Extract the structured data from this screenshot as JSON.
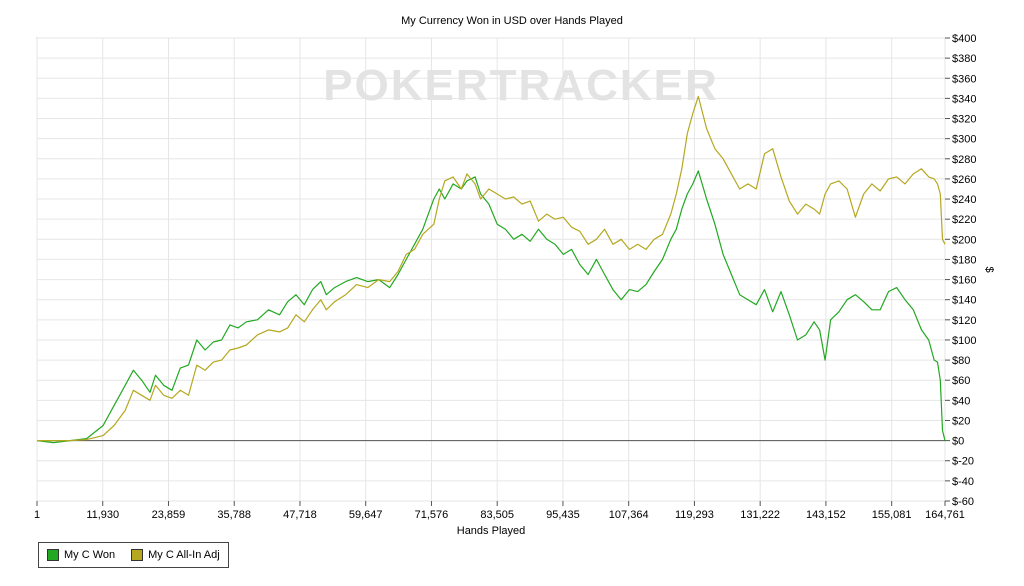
{
  "chart_data": {
    "type": "line",
    "title": "My Currency Won in USD over Hands Played",
    "xlabel": "Hands Played",
    "ylabel": "$",
    "watermark": "POKERTRACKER",
    "xlim": [
      1,
      164761
    ],
    "ylim": [
      -60,
      400
    ],
    "x_ticks": [
      "1",
      "11,930",
      "23,859",
      "35,788",
      "47,718",
      "59,647",
      "71,576",
      "83,505",
      "95,435",
      "107,364",
      "119,293",
      "131,222",
      "143,152",
      "155,081",
      "164,761"
    ],
    "x_tick_values": [
      1,
      11930,
      23859,
      35788,
      47718,
      59647,
      71576,
      83505,
      95435,
      107364,
      119293,
      131222,
      143152,
      155081,
      164761
    ],
    "y_ticks": [
      "$400",
      "$380",
      "$360",
      "$340",
      "$320",
      "$300",
      "$280",
      "$260",
      "$240",
      "$220",
      "$200",
      "$180",
      "$160",
      "$140",
      "$120",
      "$100",
      "$80",
      "$60",
      "$40",
      "$20",
      "$0",
      "$-20",
      "$-40",
      "$-60"
    ],
    "y_tick_values": [
      400,
      380,
      360,
      340,
      320,
      300,
      280,
      260,
      240,
      220,
      200,
      180,
      160,
      140,
      120,
      100,
      80,
      60,
      40,
      20,
      0,
      -20,
      -40,
      -60
    ],
    "grid": true,
    "legend_position": "bottom-left",
    "series": [
      {
        "name": "My C Won",
        "color": "#22a822",
        "x": [
          1,
          3000,
          6000,
          9000,
          12000,
          14000,
          16000,
          17500,
          19000,
          20500,
          21500,
          23000,
          24500,
          26000,
          27500,
          29000,
          30500,
          32000,
          33500,
          35000,
          36500,
          38000,
          40000,
          42000,
          44000,
          45500,
          47000,
          48500,
          50000,
          51500,
          52500,
          54000,
          56000,
          58000,
          60000,
          62000,
          64000,
          65500,
          67000,
          68500,
          70000,
          71000,
          72000,
          73000,
          74000,
          75500,
          77000,
          78000,
          79500,
          80500,
          82000,
          83500,
          85000,
          86500,
          88000,
          89500,
          91000,
          92500,
          94000,
          95500,
          97000,
          98500,
          100000,
          101500,
          103000,
          104500,
          106000,
          107500,
          109000,
          110500,
          112000,
          113500,
          115000,
          116000,
          117000,
          118000,
          119000,
          120000,
          121500,
          123000,
          124500,
          126000,
          127500,
          129000,
          130500,
          132000,
          133500,
          135000,
          136500,
          138000,
          139500,
          141000,
          142000,
          143000,
          144000,
          145500,
          147000,
          148500,
          150000,
          151500,
          153000,
          154500,
          156000,
          157500,
          159000,
          160500,
          161800,
          162800,
          163400,
          163900,
          164300,
          164761
        ],
        "y": [
          0,
          -2,
          0,
          2,
          15,
          35,
          55,
          70,
          60,
          48,
          65,
          55,
          50,
          72,
          75,
          100,
          90,
          98,
          100,
          115,
          112,
          118,
          120,
          130,
          125,
          138,
          145,
          135,
          150,
          158,
          145,
          152,
          158,
          162,
          158,
          160,
          152,
          165,
          180,
          195,
          210,
          225,
          240,
          250,
          240,
          255,
          250,
          258,
          262,
          245,
          235,
          215,
          210,
          200,
          205,
          198,
          210,
          200,
          195,
          185,
          190,
          175,
          165,
          180,
          165,
          150,
          140,
          150,
          148,
          155,
          168,
          180,
          200,
          210,
          230,
          245,
          255,
          268,
          240,
          215,
          185,
          165,
          145,
          140,
          135,
          150,
          128,
          148,
          125,
          100,
          105,
          118,
          110,
          80,
          120,
          128,
          140,
          145,
          138,
          130,
          130,
          148,
          152,
          140,
          130,
          110,
          100,
          80,
          78,
          60,
          10,
          0
        ]
      },
      {
        "name": "My C All-In Adj",
        "color": "#b5a820",
        "x": [
          1,
          3000,
          6000,
          9000,
          12000,
          14000,
          16000,
          17500,
          19000,
          20500,
          21500,
          23000,
          24500,
          26000,
          27500,
          29000,
          30500,
          32000,
          33500,
          35000,
          36500,
          38000,
          40000,
          42000,
          44000,
          45500,
          47000,
          48500,
          50000,
          51500,
          52500,
          54000,
          56000,
          58000,
          60000,
          62000,
          64000,
          65500,
          67000,
          68500,
          70000,
          71000,
          72000,
          73000,
          74000,
          75500,
          77000,
          78000,
          79500,
          80500,
          82000,
          83500,
          85000,
          86500,
          88000,
          89500,
          91000,
          92500,
          94000,
          95500,
          97000,
          98500,
          100000,
          101500,
          103000,
          104500,
          106000,
          107500,
          109000,
          110500,
          112000,
          113500,
          115000,
          116000,
          117000,
          118000,
          119000,
          120000,
          121500,
          123000,
          124500,
          126000,
          127500,
          129000,
          130500,
          132000,
          133500,
          135000,
          136500,
          138000,
          139500,
          141000,
          142000,
          143000,
          144000,
          145500,
          147000,
          148500,
          150000,
          151500,
          153000,
          154500,
          156000,
          157500,
          159000,
          160500,
          161800,
          162800,
          163400,
          163900,
          164300,
          164761
        ],
        "y": [
          0,
          0,
          0,
          1,
          5,
          15,
          30,
          50,
          45,
          40,
          55,
          45,
          42,
          50,
          45,
          75,
          70,
          78,
          80,
          90,
          92,
          95,
          105,
          110,
          108,
          112,
          125,
          118,
          130,
          140,
          130,
          138,
          145,
          155,
          152,
          160,
          158,
          168,
          185,
          190,
          205,
          210,
          215,
          240,
          258,
          262,
          250,
          265,
          255,
          240,
          250,
          245,
          240,
          242,
          235,
          238,
          218,
          225,
          220,
          222,
          212,
          208,
          195,
          200,
          210,
          195,
          200,
          190,
          195,
          190,
          200,
          205,
          225,
          245,
          270,
          305,
          325,
          342,
          310,
          290,
          280,
          265,
          250,
          255,
          250,
          285,
          290,
          262,
          238,
          225,
          235,
          230,
          225,
          245,
          255,
          258,
          250,
          222,
          245,
          255,
          248,
          260,
          262,
          255,
          265,
          270,
          262,
          260,
          255,
          245,
          200,
          195
        ]
      }
    ]
  }
}
